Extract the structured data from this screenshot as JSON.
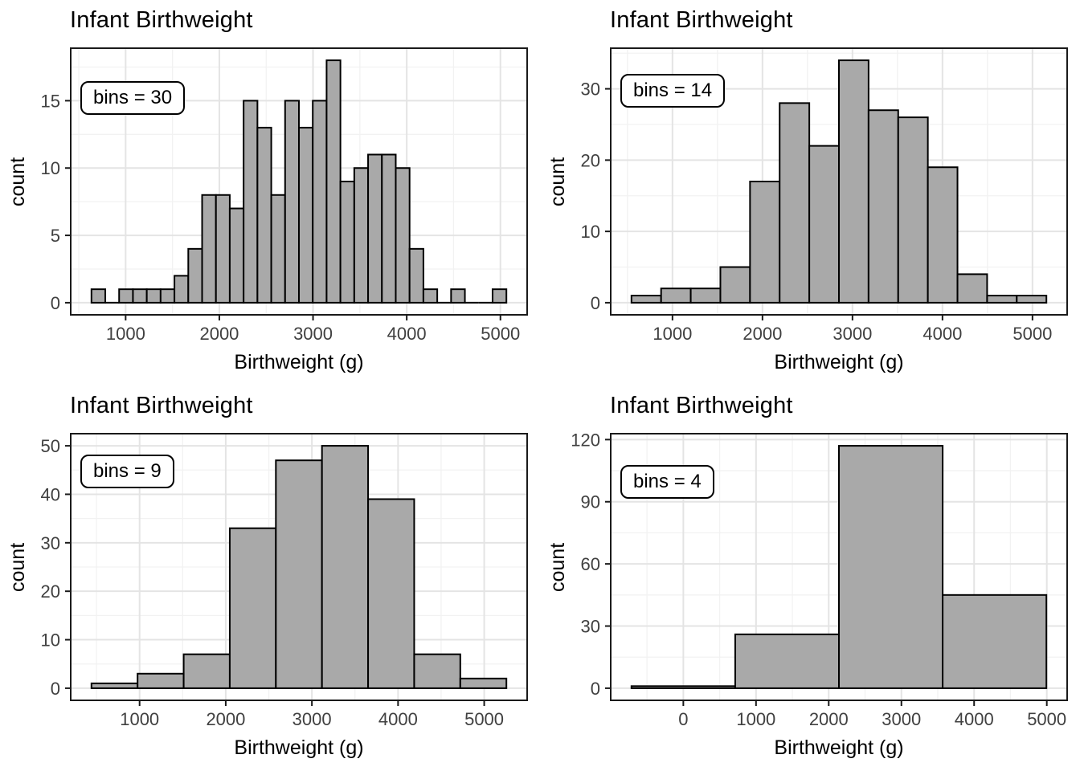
{
  "style": {
    "bar_fill": "#A9A9A9",
    "bar_stroke": "#000000",
    "grid_major": "#E4E4E4",
    "grid_minor": "#F2F2F2",
    "axis_text": "#404040",
    "panel_border": "#1A1A1A",
    "background": "#FFFFFF"
  },
  "chart_data": [
    {
      "type": "bar",
      "subtype": "histogram",
      "title": "Infant Birthweight",
      "annotation": "bins = 30",
      "bins": 30,
      "xlabel": "Birthweight (g)",
      "ylabel": "count",
      "bin_left_edge": 635.19,
      "bin_width": 147.62,
      "counts": [
        1,
        0,
        1,
        1,
        1,
        1,
        2,
        4,
        8,
        8,
        7,
        15,
        13,
        8,
        15,
        13,
        15,
        18,
        9,
        10,
        11,
        11,
        10,
        4,
        1,
        0,
        1,
        0,
        0,
        1
      ],
      "x_ticks": [
        1000,
        2000,
        3000,
        4000,
        5000
      ],
      "x_minor": [
        500,
        1500,
        2500,
        3500,
        4500
      ],
      "y_ticks": [
        0,
        5,
        10,
        15
      ],
      "y_minor": [
        2.5,
        7.5,
        12.5,
        17.5
      ],
      "xlim": [
        413.8,
        5285.2
      ],
      "ylim": [
        -0.9,
        18.9
      ],
      "grid": true,
      "legend": false
    },
    {
      "type": "bar",
      "subtype": "histogram",
      "title": "Infant Birthweight",
      "annotation": "bins = 14",
      "bins": 14,
      "xlabel": "Birthweight (g)",
      "ylabel": "count",
      "bin_left_edge": 544.35,
      "bin_width": 329.31,
      "counts": [
        1,
        2,
        2,
        5,
        17,
        28,
        22,
        34,
        27,
        26,
        19,
        4,
        1,
        1
      ],
      "x_ticks": [
        1000,
        2000,
        3000,
        4000,
        5000
      ],
      "x_minor": [
        500,
        1500,
        2500,
        3500,
        4500
      ],
      "y_ticks": [
        0,
        10,
        20,
        30
      ],
      "y_minor": [
        5,
        15,
        25,
        35
      ],
      "xlim": [
        313.8,
        5385.2
      ],
      "ylim": [
        -1.7,
        35.7
      ],
      "grid": true,
      "legend": false
    },
    {
      "type": "bar",
      "subtype": "histogram",
      "title": "Infant Birthweight",
      "annotation": "bins = 9",
      "bins": 9,
      "xlabel": "Birthweight (g)",
      "ylabel": "count",
      "bin_left_edge": 441.44,
      "bin_width": 535.13,
      "counts": [
        1,
        3,
        7,
        33,
        47,
        50,
        39,
        7,
        2
      ],
      "x_ticks": [
        1000,
        2000,
        3000,
        4000,
        5000
      ],
      "x_minor": [
        500,
        1500,
        2500,
        3500,
        4500
      ],
      "y_ticks": [
        0,
        10,
        20,
        30,
        40,
        50
      ],
      "y_minor": [
        5,
        15,
        25,
        35,
        45
      ],
      "xlim": [
        200.6,
        5498.4
      ],
      "ylim": [
        -2.5,
        52.5
      ],
      "grid": true,
      "legend": false
    },
    {
      "type": "bar",
      "subtype": "histogram",
      "title": "Infant Birthweight",
      "annotation": "bins = 4",
      "bins": 4,
      "xlabel": "Birthweight (g)",
      "ylabel": "count",
      "bin_left_edge": -713.5,
      "bin_width": 1427.0,
      "counts": [
        1,
        26,
        117,
        45
      ],
      "x_ticks": [
        0,
        1000,
        2000,
        3000,
        4000,
        5000
      ],
      "x_minor": [
        -500,
        500,
        1500,
        2500,
        3500,
        4500
      ],
      "y_ticks": [
        0,
        30,
        60,
        90,
        120
      ],
      "y_minor": [
        15,
        45,
        75,
        105
      ],
      "xlim": [
        -998.9,
        5279.9
      ],
      "ylim": [
        -5.85,
        122.85
      ],
      "grid": true,
      "legend": false
    }
  ]
}
